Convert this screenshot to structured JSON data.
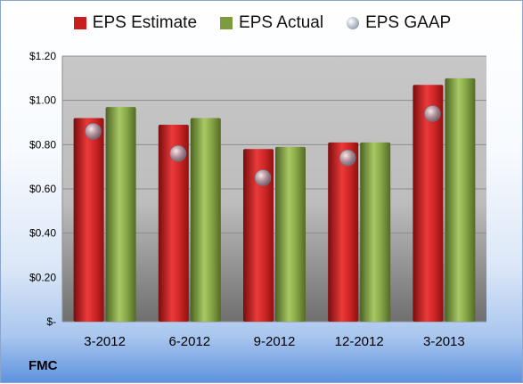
{
  "company": "FMC",
  "colors": {
    "estimate": "#c81e1e",
    "actual": "#7d9c3f",
    "gaap": "#9aa4b4",
    "plot_top": "#c7c7c7",
    "plot_bottom": "#6f6f6f"
  },
  "chart_data": {
    "type": "bar",
    "categories": [
      "3-2012",
      "6-2012",
      "9-2012",
      "12-2012",
      "3-2013"
    ],
    "series": [
      {
        "name": "EPS Estimate",
        "values": [
          0.92,
          0.89,
          0.78,
          0.81,
          1.07
        ],
        "color": "#c81e1e",
        "mark": "bar"
      },
      {
        "name": "EPS Actual",
        "values": [
          0.97,
          0.92,
          0.79,
          0.81,
          1.1
        ],
        "color": "#7d9c3f",
        "mark": "bar"
      },
      {
        "name": "EPS GAAP",
        "values": [
          0.86,
          0.76,
          0.65,
          0.74,
          0.94
        ],
        "color": "#9aa4b4",
        "mark": "point"
      }
    ],
    "yticks": [
      {
        "value": 0,
        "label": "$-"
      },
      {
        "value": 0.2,
        "label": "$0.20"
      },
      {
        "value": 0.4,
        "label": "$0.40"
      },
      {
        "value": 0.6,
        "label": "$0.60"
      },
      {
        "value": 0.8,
        "label": "$0.80"
      },
      {
        "value": 1.0,
        "label": "$1.00"
      },
      {
        "value": 1.2,
        "label": "$1.20"
      }
    ],
    "ylim": [
      0,
      1.2
    ],
    "grid": true,
    "legend": "top"
  }
}
